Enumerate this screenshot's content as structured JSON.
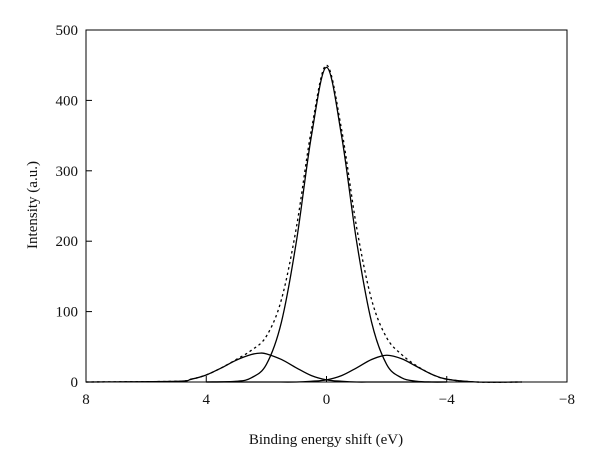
{
  "chart_data": {
    "type": "line",
    "title": "",
    "xlabel": "Binding energy shift (eV)",
    "ylabel": "Intensity (a.u.)",
    "xlim": [
      8,
      -8
    ],
    "ylim": [
      0,
      500
    ],
    "x_reversed": true,
    "xticks": [
      8,
      4,
      0,
      -4,
      -8
    ],
    "xtick_labels": [
      "8",
      "4",
      "0",
      "−4",
      "−8"
    ],
    "yticks": [
      0,
      100,
      200,
      300,
      400,
      500
    ],
    "ytick_labels": [
      "0",
      "100",
      "200",
      "300",
      "400",
      "500"
    ],
    "grid": false,
    "legend": "none",
    "series": [
      {
        "style": "solid",
        "x": [
          8.0,
          5.0,
          4.5,
          4.0,
          3.5,
          3.0,
          2.5,
          2.2,
          2.0,
          1.5,
          1.0,
          0.5,
          0.0,
          -0.5,
          -1.0,
          -1.5,
          -2.0,
          -2.5,
          -3.0,
          -3.5,
          -4.0
        ],
        "y": [
          0,
          1,
          4,
          10,
          20,
          31,
          39,
          41,
          40,
          32,
          20,
          9,
          3,
          1,
          0,
          0,
          0,
          0,
          0,
          0,
          0
        ]
      },
      {
        "style": "solid",
        "x": [
          4.0,
          3.0,
          2.5,
          2.0,
          1.5,
          1.0,
          0.5,
          0.0,
          -0.5,
          -1.0,
          -1.5,
          -2.0,
          -2.5,
          -3.0,
          -3.5,
          -4.0
        ],
        "y": [
          0,
          1,
          6,
          25,
          85,
          200,
          350,
          447,
          350,
          200,
          85,
          25,
          6,
          1,
          0,
          0
        ]
      },
      {
        "style": "solid",
        "x": [
          4.0,
          2.0,
          1.0,
          0.5,
          0.0,
          -0.5,
          -1.0,
          -1.5,
          -2.0,
          -2.5,
          -3.0,
          -3.5,
          -4.0,
          -5.0,
          -6.5
        ],
        "y": [
          0,
          0,
          0,
          1,
          3,
          9,
          20,
          32,
          38,
          33,
          22,
          11,
          4,
          0,
          0
        ]
      },
      {
        "style": "dashed",
        "x": [
          8.0,
          5.0,
          4.5,
          4.0,
          3.5,
          3.0,
          2.5,
          2.0,
          1.5,
          1.0,
          0.5,
          0.0,
          -0.5,
          -1.0,
          -1.5,
          -2.0,
          -2.5,
          -3.0,
          -3.5,
          -4.0,
          -5.0,
          -6.5
        ],
        "y": [
          0,
          1,
          4,
          10,
          20,
          32,
          45,
          65,
          117,
          220,
          359,
          450,
          359,
          220,
          117,
          63,
          39,
          23,
          11,
          4,
          0,
          0
        ]
      }
    ]
  }
}
